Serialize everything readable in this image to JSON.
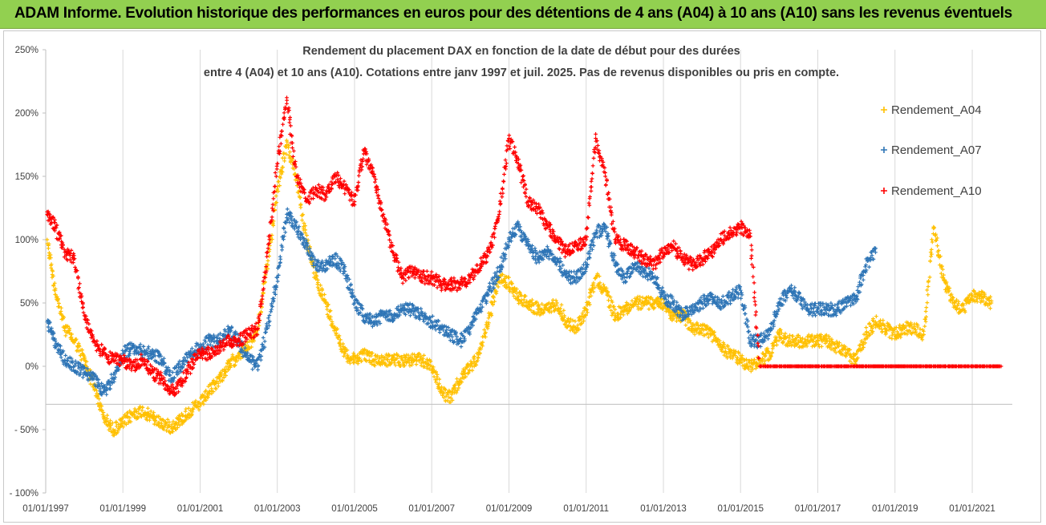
{
  "banner": {
    "title": "ADAM Informe. Evolution historique des performances en euros pour des détentions de 4 ans (A04) à 10 ans (A10) sans les revenus éventuels"
  },
  "chart_data": {
    "type": "scatter",
    "title_line1": "Rendement du placement DAX en fonction de la date de début pour des durées",
    "title_line2": "entre 4 (A04) et 10 ans (A10). Cotations entre janv 1997 et juil. 2025. Pas de revenus disponibles ou pris en compte.",
    "xlabel": "",
    "ylabel": "",
    "xlim": [
      "1997-01-01",
      "2022-01-15"
    ],
    "ylim": [
      -1.0,
      2.5
    ],
    "x_ticks": [
      "01/01/1997",
      "01/01/1999",
      "01/01/2001",
      "01/01/2003",
      "01/01/2005",
      "01/01/2007",
      "01/01/2009",
      "01/01/2011",
      "01/01/2013",
      "01/01/2015",
      "01/01/2017",
      "01/01/2019",
      "01/01/2021"
    ],
    "y_ticks": [
      "250%",
      "200%",
      "150%",
      "100%",
      "50%",
      "0%",
      "- 50%",
      "- 100%"
    ],
    "grid": "vertical",
    "legend_position": "right",
    "series": [
      {
        "name": "Rendement_A04",
        "color": "#ffc000",
        "x": [
          "1997-01-15",
          "1997-04-01",
          "1997-07-01",
          "1997-10-01",
          "1998-01-01",
          "1998-04-01",
          "1998-07-01",
          "1998-10-01",
          "1999-01-01",
          "1999-04-01",
          "1999-07-01",
          "1999-10-01",
          "2000-01-01",
          "2000-04-01",
          "2000-07-01",
          "2000-10-01",
          "2001-01-01",
          "2001-04-01",
          "2001-07-01",
          "2001-10-01",
          "2002-01-01",
          "2002-04-01",
          "2002-07-01",
          "2002-10-01",
          "2003-01-01",
          "2003-04-01",
          "2003-07-01",
          "2003-10-01",
          "2004-01-01",
          "2004-04-01",
          "2004-07-01",
          "2004-10-01",
          "2005-01-01",
          "2005-04-01",
          "2005-07-01",
          "2005-10-01",
          "2006-01-01",
          "2006-04-01",
          "2006-07-01",
          "2006-10-01",
          "2007-01-01",
          "2007-04-01",
          "2007-07-01",
          "2007-10-01",
          "2008-01-01",
          "2008-04-01",
          "2008-07-01",
          "2008-10-01",
          "2009-01-01",
          "2009-04-01",
          "2009-07-01",
          "2009-10-01",
          "2010-01-01",
          "2010-04-01",
          "2010-07-01",
          "2010-10-01",
          "2011-01-01",
          "2011-04-01",
          "2011-07-01",
          "2011-10-01",
          "2012-01-01",
          "2012-04-01",
          "2012-07-01",
          "2012-10-01",
          "2013-01-01",
          "2013-04-01",
          "2013-07-01",
          "2013-10-01",
          "2014-01-01",
          "2014-04-01",
          "2014-07-01",
          "2014-10-01",
          "2015-01-01",
          "2015-04-01",
          "2015-07-01",
          "2015-10-01",
          "2016-01-01",
          "2016-04-01",
          "2016-07-01",
          "2016-10-01",
          "2017-01-01",
          "2017-04-01",
          "2017-07-01",
          "2017-10-01",
          "2018-01-01",
          "2018-04-01",
          "2018-07-01",
          "2018-10-01",
          "2019-01-01",
          "2019-04-01",
          "2019-07-01",
          "2019-10-01",
          "2020-01-01",
          "2020-04-01",
          "2020-07-01",
          "2020-10-01",
          "2021-01-01",
          "2021-04-01",
          "2021-07-01"
        ],
        "y": [
          1.0,
          0.6,
          0.3,
          0.2,
          0.05,
          -0.15,
          -0.4,
          -0.5,
          -0.45,
          -0.38,
          -0.35,
          -0.4,
          -0.45,
          -0.48,
          -0.42,
          -0.35,
          -0.3,
          -0.2,
          -0.1,
          0.0,
          0.1,
          0.15,
          0.3,
          0.8,
          1.4,
          1.75,
          1.5,
          1.0,
          0.7,
          0.5,
          0.3,
          0.1,
          0.05,
          0.1,
          0.05,
          0.05,
          0.05,
          0.05,
          0.05,
          0.05,
          0.0,
          -0.2,
          -0.25,
          -0.1,
          0.0,
          0.1,
          0.4,
          0.7,
          0.65,
          0.55,
          0.5,
          0.45,
          0.45,
          0.5,
          0.35,
          0.3,
          0.45,
          0.7,
          0.6,
          0.4,
          0.45,
          0.5,
          0.5,
          0.5,
          0.5,
          0.4,
          0.4,
          0.3,
          0.3,
          0.25,
          0.15,
          0.1,
          0.05,
          0.0,
          0.05,
          0.1,
          0.25,
          0.2,
          0.2,
          0.2,
          0.2,
          0.2,
          0.15,
          0.1,
          0.05,
          0.25,
          0.35,
          0.3,
          0.25,
          0.3,
          0.3,
          0.25,
          1.1,
          0.7,
          0.5,
          0.45,
          0.55,
          0.55,
          0.5
        ]
      },
      {
        "name": "Rendement_A07",
        "color": "#2e75b6",
        "x": [
          "1997-01-15",
          "1997-04-01",
          "1997-07-01",
          "1997-10-01",
          "1998-01-01",
          "1998-04-01",
          "1998-07-01",
          "1998-10-01",
          "1999-01-01",
          "1999-04-01",
          "1999-07-01",
          "1999-10-01",
          "2000-01-01",
          "2000-04-01",
          "2000-07-01",
          "2000-10-01",
          "2001-01-01",
          "2001-04-01",
          "2001-07-01",
          "2001-10-01",
          "2002-01-01",
          "2002-04-01",
          "2002-07-01",
          "2002-10-01",
          "2003-01-01",
          "2003-04-01",
          "2003-07-01",
          "2003-10-01",
          "2004-01-01",
          "2004-04-01",
          "2004-07-01",
          "2004-10-01",
          "2005-01-01",
          "2005-04-01",
          "2005-07-01",
          "2005-10-01",
          "2006-01-01",
          "2006-04-01",
          "2006-07-01",
          "2006-10-01",
          "2007-01-01",
          "2007-04-01",
          "2007-07-01",
          "2007-10-01",
          "2008-01-01",
          "2008-04-01",
          "2008-07-01",
          "2008-10-01",
          "2009-01-01",
          "2009-04-01",
          "2009-07-01",
          "2009-10-01",
          "2010-01-01",
          "2010-04-01",
          "2010-07-01",
          "2010-10-01",
          "2011-01-01",
          "2011-04-01",
          "2011-07-01",
          "2011-10-01",
          "2012-01-01",
          "2012-04-01",
          "2012-07-01",
          "2012-10-01",
          "2013-01-01",
          "2013-04-01",
          "2013-07-01",
          "2013-10-01",
          "2014-01-01",
          "2014-04-01",
          "2014-07-01",
          "2014-10-01",
          "2015-01-01",
          "2015-04-01",
          "2015-07-01",
          "2015-10-01",
          "2016-01-01",
          "2016-04-01",
          "2016-07-01",
          "2016-10-01",
          "2017-01-01",
          "2017-04-01",
          "2017-07-01",
          "2017-10-01",
          "2018-01-01",
          "2018-04-01",
          "2018-07-01"
        ],
        "y": [
          0.35,
          0.2,
          0.05,
          0.0,
          -0.05,
          -0.1,
          -0.2,
          -0.1,
          0.1,
          0.15,
          0.12,
          0.1,
          0.05,
          -0.1,
          0.0,
          0.1,
          0.15,
          0.2,
          0.2,
          0.3,
          0.2,
          0.05,
          0.0,
          0.3,
          0.7,
          1.2,
          1.1,
          0.95,
          0.8,
          0.8,
          0.85,
          0.75,
          0.5,
          0.4,
          0.35,
          0.4,
          0.4,
          0.45,
          0.45,
          0.4,
          0.35,
          0.3,
          0.25,
          0.2,
          0.3,
          0.45,
          0.6,
          0.75,
          1.0,
          1.1,
          0.95,
          0.85,
          0.9,
          0.85,
          0.7,
          0.7,
          0.8,
          1.05,
          1.1,
          0.8,
          0.7,
          0.8,
          0.75,
          0.7,
          0.55,
          0.5,
          0.4,
          0.45,
          0.5,
          0.55,
          0.5,
          0.55,
          0.6,
          0.2,
          0.2,
          0.25,
          0.5,
          0.6,
          0.55,
          0.45,
          0.45,
          0.45,
          0.45,
          0.5,
          0.55,
          0.8,
          0.9
        ]
      },
      {
        "name": "Rendement_A10",
        "color": "#ff0000",
        "x": [
          "1997-01-15",
          "1997-04-01",
          "1997-07-01",
          "1997-10-01",
          "1998-01-01",
          "1998-04-01",
          "1998-07-01",
          "1998-10-01",
          "1999-01-01",
          "1999-04-01",
          "1999-07-01",
          "1999-10-01",
          "2000-01-01",
          "2000-04-01",
          "2000-07-01",
          "2000-10-01",
          "2001-01-01",
          "2001-04-01",
          "2001-07-01",
          "2001-10-01",
          "2002-01-01",
          "2002-04-01",
          "2002-07-01",
          "2002-10-01",
          "2003-01-01",
          "2003-04-01",
          "2003-07-01",
          "2003-10-01",
          "2004-01-01",
          "2004-04-01",
          "2004-07-01",
          "2004-10-01",
          "2005-01-01",
          "2005-04-01",
          "2005-07-01",
          "2005-10-01",
          "2006-01-01",
          "2006-04-01",
          "2006-07-01",
          "2006-10-01",
          "2007-01-01",
          "2007-04-01",
          "2007-07-01",
          "2007-10-01",
          "2008-01-01",
          "2008-04-01",
          "2008-07-01",
          "2008-10-01",
          "2009-01-01",
          "2009-04-01",
          "2009-07-01",
          "2009-10-01",
          "2010-01-01",
          "2010-04-01",
          "2010-07-01",
          "2010-10-01",
          "2011-01-01",
          "2011-04-01",
          "2011-07-01",
          "2011-10-01",
          "2012-01-01",
          "2012-04-01",
          "2012-07-01",
          "2012-10-01",
          "2013-01-01",
          "2013-04-01",
          "2013-07-01",
          "2013-10-01",
          "2014-01-01",
          "2014-04-01",
          "2014-07-01",
          "2014-10-01",
          "2015-01-01",
          "2015-04-01",
          "2015-07-01",
          "2015-10-01",
          "2016-01-01",
          "2016-04-01",
          "2016-07-01",
          "2016-10-01",
          "2017-01-01",
          "2017-04-01",
          "2017-07-01",
          "2017-10-01",
          "2018-01-01",
          "2018-04-01",
          "2018-07-01",
          "2018-10-01",
          "2019-01-01",
          "2019-04-01",
          "2019-07-01",
          "2019-10-01",
          "2020-01-01",
          "2020-04-01",
          "2020-07-01",
          "2020-10-01",
          "2021-01-01",
          "2021-04-01",
          "2021-07-01",
          "2021-10-01"
        ],
        "y": [
          1.2,
          1.1,
          0.9,
          0.85,
          0.4,
          0.2,
          0.1,
          0.05,
          0.05,
          0.0,
          0.05,
          -0.05,
          -0.1,
          -0.2,
          -0.15,
          0.0,
          0.1,
          0.1,
          0.15,
          0.2,
          0.2,
          0.25,
          0.3,
          0.9,
          1.6,
          2.1,
          1.5,
          1.3,
          1.4,
          1.35,
          1.5,
          1.4,
          1.3,
          1.7,
          1.5,
          1.2,
          0.9,
          0.7,
          0.75,
          0.7,
          0.7,
          0.65,
          0.65,
          0.65,
          0.7,
          0.8,
          0.9,
          1.2,
          1.8,
          1.6,
          1.3,
          1.25,
          1.1,
          1.0,
          0.9,
          0.95,
          1.0,
          1.8,
          1.5,
          1.0,
          0.95,
          0.9,
          0.85,
          0.8,
          0.9,
          0.95,
          0.85,
          0.8,
          0.85,
          0.9,
          1.0,
          1.05,
          1.1,
          1.05,
          0.0,
          0.0,
          0.0,
          0.0,
          0.0,
          0.0,
          0.0,
          0.0,
          0.0,
          0.0,
          0.0,
          0.0,
          0.0,
          0.0,
          0.0,
          0.0,
          0.0,
          0.0,
          0.0,
          0.0,
          0.0,
          0.0,
          0.0,
          0.0,
          0.0,
          0.0
        ]
      }
    ]
  }
}
